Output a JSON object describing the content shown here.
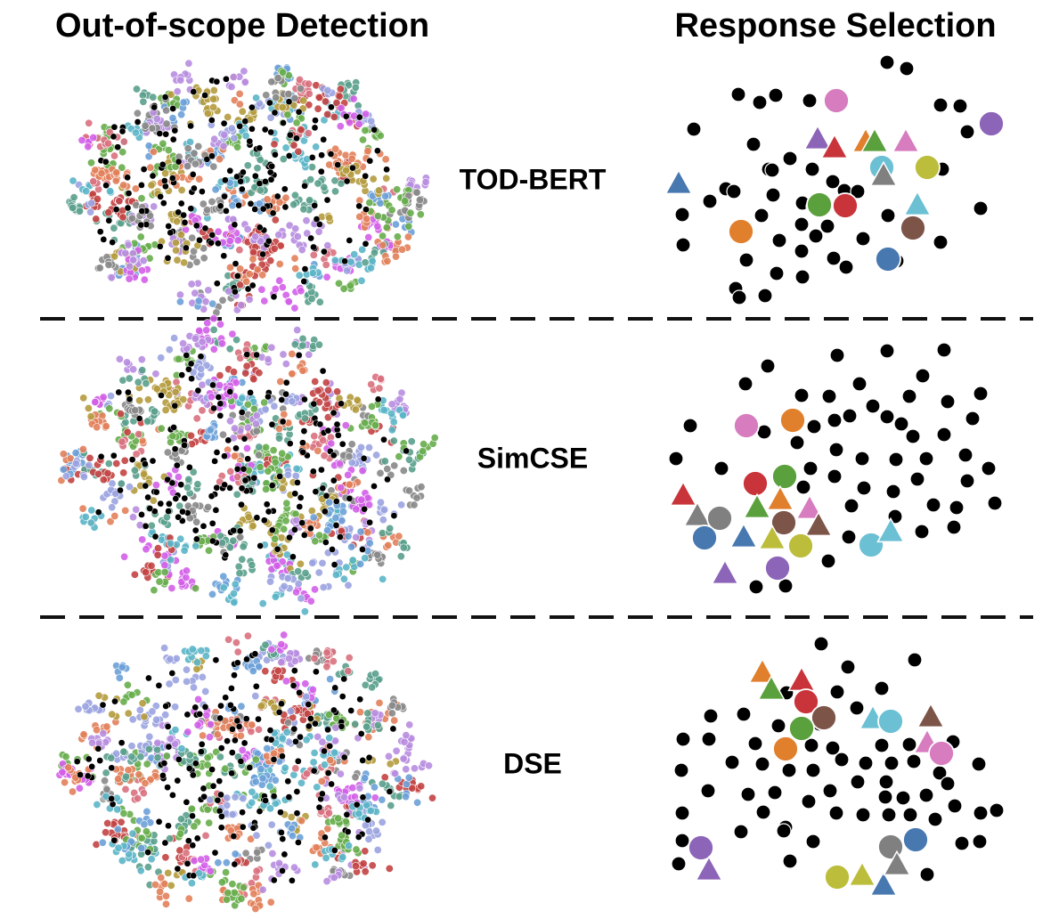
{
  "headers": {
    "left": "Out-of-scope Detection",
    "right": "Response Selection"
  },
  "models": [
    {
      "name": "TOD-BERT"
    },
    {
      "name": "SimCSE"
    },
    {
      "name": "DSE"
    }
  ],
  "colors": {
    "palette": [
      "#4878b0",
      "#e07f2c",
      "#5aa03c",
      "#c8343a",
      "#8c64b8",
      "#7d5548",
      "#d67cbf",
      "#808080",
      "#bcbd3a",
      "#6cc0d4"
    ],
    "cluster_palette": [
      "#d35fe8",
      "#6ca0d8",
      "#5aa08c",
      "#5bb5c8",
      "#67ad4b",
      "#b49b3d",
      "#d9707e",
      "#e27f5a",
      "#9aa3e0",
      "#b88de0",
      "#888888",
      "#c34343"
    ],
    "ood_point": "#000000",
    "separator": "#111111"
  },
  "response_selection": [
    {
      "model": "TOD-BERT",
      "colored": [
        {
          "shape": "triangle",
          "color": "blue"
        },
        {
          "shape": "circle",
          "color": "orange"
        },
        {
          "shape": "triangle",
          "color": "purple"
        },
        {
          "shape": "triangle",
          "color": "red"
        },
        {
          "shape": "circle",
          "color": "pink"
        },
        {
          "shape": "triangle",
          "color": "orange"
        },
        {
          "shape": "triangle",
          "color": "green"
        },
        {
          "shape": "triangle",
          "color": "pink"
        },
        {
          "shape": "circle",
          "color": "olive"
        },
        {
          "shape": "circle",
          "color": "cyan"
        },
        {
          "shape": "triangle",
          "color": "gray"
        },
        {
          "shape": "circle",
          "color": "purple"
        },
        {
          "shape": "circle",
          "color": "green"
        },
        {
          "shape": "circle",
          "color": "red"
        },
        {
          "shape": "triangle",
          "color": "cyan"
        },
        {
          "shape": "circle",
          "color": "brown"
        },
        {
          "shape": "circle",
          "color": "blue"
        }
      ]
    },
    {
      "model": "SimCSE",
      "colored": [
        {
          "shape": "circle",
          "color": "pink"
        },
        {
          "shape": "circle",
          "color": "orange"
        },
        {
          "shape": "triangle",
          "color": "red"
        },
        {
          "shape": "circle",
          "color": "red"
        },
        {
          "shape": "circle",
          "color": "green"
        },
        {
          "shape": "triangle",
          "color": "green"
        },
        {
          "shape": "triangle",
          "color": "orange"
        },
        {
          "shape": "triangle",
          "color": "gray"
        },
        {
          "shape": "circle",
          "color": "gray"
        },
        {
          "shape": "circle",
          "color": "brown"
        },
        {
          "shape": "triangle",
          "color": "pink"
        },
        {
          "shape": "triangle",
          "color": "brown"
        },
        {
          "shape": "circle",
          "color": "blue"
        },
        {
          "shape": "triangle",
          "color": "blue"
        },
        {
          "shape": "triangle",
          "color": "olive"
        },
        {
          "shape": "circle",
          "color": "olive"
        },
        {
          "shape": "circle",
          "color": "cyan"
        },
        {
          "shape": "triangle",
          "color": "cyan"
        },
        {
          "shape": "triangle",
          "color": "purple"
        },
        {
          "shape": "circle",
          "color": "purple"
        }
      ]
    },
    {
      "model": "DSE",
      "colored": [
        {
          "shape": "triangle",
          "color": "orange"
        },
        {
          "shape": "triangle",
          "color": "green"
        },
        {
          "shape": "triangle",
          "color": "red"
        },
        {
          "shape": "circle",
          "color": "red"
        },
        {
          "shape": "circle",
          "color": "brown"
        },
        {
          "shape": "circle",
          "color": "green"
        },
        {
          "shape": "circle",
          "color": "orange"
        },
        {
          "shape": "triangle",
          "color": "cyan"
        },
        {
          "shape": "circle",
          "color": "cyan"
        },
        {
          "shape": "triangle",
          "color": "brown"
        },
        {
          "shape": "triangle",
          "color": "pink"
        },
        {
          "shape": "circle",
          "color": "pink"
        },
        {
          "shape": "circle",
          "color": "purple"
        },
        {
          "shape": "triangle",
          "color": "purple"
        },
        {
          "shape": "circle",
          "color": "olive"
        },
        {
          "shape": "triangle",
          "color": "olive"
        },
        {
          "shape": "triangle",
          "color": "blue"
        },
        {
          "shape": "circle",
          "color": "gray"
        },
        {
          "shape": "triangle",
          "color": "gray"
        },
        {
          "shape": "circle",
          "color": "blue"
        }
      ]
    }
  ]
}
